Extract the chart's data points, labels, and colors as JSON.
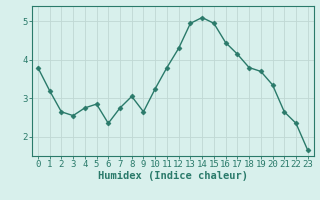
{
  "title": "",
  "xlabel": "Humidex (Indice chaleur)",
  "ylabel": "",
  "x": [
    0,
    1,
    2,
    3,
    4,
    5,
    6,
    7,
    8,
    9,
    10,
    11,
    12,
    13,
    14,
    15,
    16,
    17,
    18,
    19,
    20,
    21,
    22,
    23
  ],
  "y": [
    3.8,
    3.2,
    2.65,
    2.55,
    2.75,
    2.85,
    2.35,
    2.75,
    3.05,
    2.65,
    3.25,
    3.8,
    4.3,
    4.95,
    5.1,
    4.95,
    4.45,
    4.15,
    3.8,
    3.7,
    3.35,
    2.65,
    2.35,
    1.65
  ],
  "line_color": "#2a7a6a",
  "marker": "D",
  "marker_size": 2.5,
  "bg_color": "#d8f0ec",
  "grid_color": "#c0d8d4",
  "ylim": [
    1.5,
    5.4
  ],
  "xlim": [
    -0.5,
    23.5
  ],
  "yticks": [
    2,
    3,
    4,
    5
  ],
  "tick_fontsize": 6.5,
  "xlabel_fontsize": 7.5,
  "axis_label_color": "#2a7a6a",
  "tick_color": "#2a7a6a",
  "spine_color": "#2a7a6a"
}
